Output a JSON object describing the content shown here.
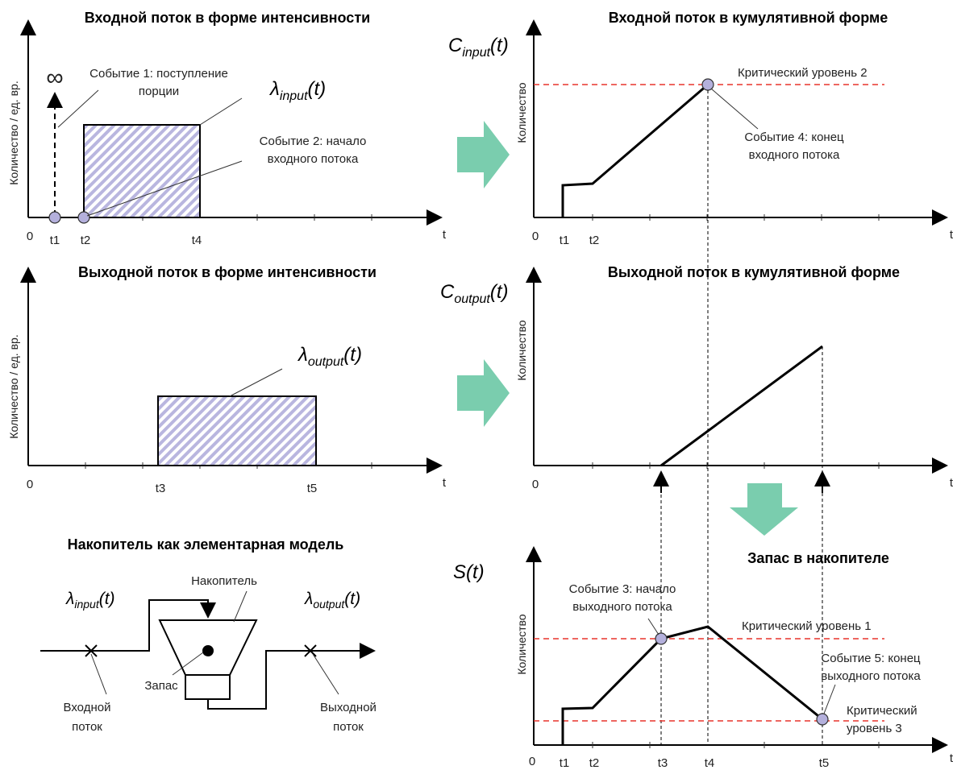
{
  "input_rate": {
    "title": "Входной поток в форме интенсивности",
    "y_label": "Количество / ед. вр.",
    "infinity": "∞",
    "symbol": {
      "base": "λ",
      "sub": "input",
      "arg": "(t)"
    },
    "event1": [
      "Событие 1: поступление",
      "порции"
    ],
    "event2": [
      "Событие 2: начало",
      "входного потока"
    ],
    "ticks": [
      "0",
      "t1",
      "t2",
      "t4",
      "t"
    ]
  },
  "input_cumulative": {
    "title": "Входной поток в кумулятивной форме",
    "symbol": {
      "base": "C",
      "sub": "input",
      "arg": "(t)"
    },
    "y_label": "Количество",
    "critical_level": "Критический уровень 2",
    "event4": [
      "Событие 4: конец",
      "входного потока"
    ],
    "ticks": [
      "0",
      "t1",
      "t2",
      "t"
    ]
  },
  "output_rate": {
    "title": "Выходной поток в форме интенсивности",
    "y_label": "Количество / ед. вр.",
    "symbol": {
      "base": "λ",
      "sub": "output",
      "arg": "(t)"
    },
    "ticks": [
      "0",
      "t3",
      "t5",
      "t"
    ]
  },
  "output_cumulative": {
    "title": "Выходной поток в кумулятивной форме",
    "symbol": {
      "base": "C",
      "sub": "output",
      "arg": "(t)"
    },
    "y_label": "Количество",
    "ticks": [
      "0",
      "t"
    ]
  },
  "model": {
    "title": "Накопитель как элементарная модель",
    "input_symbol": {
      "base": "λ",
      "sub": "input",
      "arg": "(t)"
    },
    "output_symbol": {
      "base": "λ",
      "sub": "output",
      "arg": "(t)"
    },
    "storage": "Накопитель",
    "stock": "Запас",
    "input_label": [
      "Входной",
      "поток"
    ],
    "output_label": [
      "Выходной",
      "поток"
    ]
  },
  "stock": {
    "title": "Запас в накопителе",
    "symbol": "S(t)",
    "y_label": "Количество",
    "event3": [
      "Событие 3: начало",
      "выходного потока"
    ],
    "critical_level_1": "Критический уровень 1",
    "event5": [
      "Событие 5: конец",
      "выходного потока"
    ],
    "critical_level_3": [
      "Критический",
      "уровень 3"
    ],
    "ticks": [
      "0",
      "t1",
      "t2",
      "t3",
      "t4",
      "t5",
      "t"
    ]
  }
}
